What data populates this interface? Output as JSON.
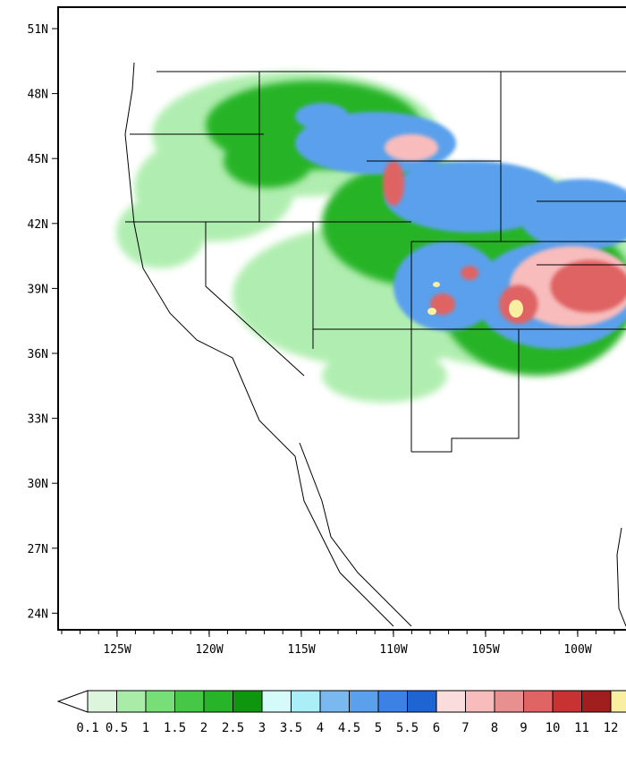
{
  "map": {
    "lat_ticks": [
      "51N",
      "48N",
      "45N",
      "42N",
      "39N",
      "36N",
      "33N",
      "30N",
      "27N",
      "24N"
    ],
    "lon_ticks": [
      "125W",
      "120W",
      "115W",
      "110W",
      "105W",
      "100W"
    ],
    "lat_range": [
      23,
      52
    ],
    "lon_range": [
      -128,
      -96
    ]
  },
  "colorbar": {
    "labels": [
      "0.1",
      "0.5",
      "1",
      "1.5",
      "2",
      "2.5",
      "3",
      "3.5",
      "4",
      "4.5",
      "5",
      "5.5",
      "6",
      "7",
      "8",
      "9",
      "10",
      "11",
      "12"
    ],
    "colors": [
      "#dcf5dc",
      "#a8eca8",
      "#78de78",
      "#46c846",
      "#28b428",
      "#0f960f",
      "#d4fafa",
      "#aaeef8",
      "#7ab8f0",
      "#5aa0ec",
      "#3c82e6",
      "#1e64d2",
      "#fadcdc",
      "#f8bcbc",
      "#e89090",
      "#e06464",
      "#c83232",
      "#a01e1e",
      "#f8f0a0"
    ]
  }
}
